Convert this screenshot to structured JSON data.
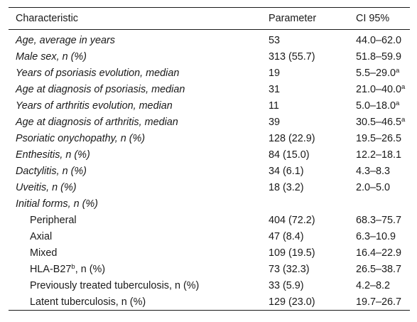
{
  "table": {
    "headers": [
      "Characteristic",
      "Parameter",
      "CI 95%"
    ],
    "rows": [
      {
        "characteristic": "Age, average in years",
        "sup": "",
        "suffix": "",
        "parameter": "53",
        "ci": "44.0–62.0",
        "ci_sup": "",
        "italic": true,
        "indent": false
      },
      {
        "characteristic": "Male sex, n (%)",
        "sup": "",
        "suffix": "",
        "parameter": "313 (55.7)",
        "ci": "51.8–59.9",
        "ci_sup": "",
        "italic": true,
        "indent": false
      },
      {
        "characteristic": "Years of psoriasis evolution, median",
        "sup": "",
        "suffix": "",
        "parameter": "19",
        "ci": "5.5–29.0",
        "ci_sup": "a",
        "italic": true,
        "indent": false
      },
      {
        "characteristic": "Age at diagnosis of psoriasis, median",
        "sup": "",
        "suffix": "",
        "parameter": "31",
        "ci": "21.0–40.0",
        "ci_sup": "a",
        "italic": true,
        "indent": false
      },
      {
        "characteristic": "Years of arthritis evolution, median",
        "sup": "",
        "suffix": "",
        "parameter": "11",
        "ci": "5.0–18.0",
        "ci_sup": "a",
        "italic": true,
        "indent": false
      },
      {
        "characteristic": "Age at diagnosis of arthritis, median",
        "sup": "",
        "suffix": "",
        "parameter": "39",
        "ci": "30.5–46.5",
        "ci_sup": "a",
        "italic": true,
        "indent": false
      },
      {
        "characteristic": "Psoriatic onychopathy, n (%)",
        "sup": "",
        "suffix": "",
        "parameter": "128 (22.9)",
        "ci": "19.5–26.5",
        "ci_sup": "",
        "italic": true,
        "indent": false
      },
      {
        "characteristic": "Enthesitis, n (%)",
        "sup": "",
        "suffix": "",
        "parameter": "84 (15.0)",
        "ci": "12.2–18.1",
        "ci_sup": "",
        "italic": true,
        "indent": false
      },
      {
        "characteristic": "Dactylitis, n (%)",
        "sup": "",
        "suffix": "",
        "parameter": "34 (6.1)",
        "ci": "4.3–8.3",
        "ci_sup": "",
        "italic": true,
        "indent": false
      },
      {
        "characteristic": "Uveitis, n (%)",
        "sup": "",
        "suffix": "",
        "parameter": "18 (3.2)",
        "ci": "2.0–5.0",
        "ci_sup": "",
        "italic": true,
        "indent": false
      },
      {
        "characteristic": "Initial forms, n (%)",
        "sup": "",
        "suffix": "",
        "parameter": "",
        "ci": "",
        "ci_sup": "",
        "italic": true,
        "indent": false
      },
      {
        "characteristic": "Peripheral",
        "sup": "",
        "suffix": "",
        "parameter": "404 (72.2)",
        "ci": "68.3–75.7",
        "ci_sup": "",
        "italic": false,
        "indent": true
      },
      {
        "characteristic": "Axial",
        "sup": "",
        "suffix": "",
        "parameter": "47 (8.4)",
        "ci": "6.3–10.9",
        "ci_sup": "",
        "italic": false,
        "indent": true
      },
      {
        "characteristic": "Mixed",
        "sup": "",
        "suffix": "",
        "parameter": "109 (19.5)",
        "ci": "16.4–22.9",
        "ci_sup": "",
        "italic": false,
        "indent": true
      },
      {
        "characteristic": "HLA-B27",
        "sup": "b",
        "suffix": ", n (%)",
        "parameter": "73 (32.3)",
        "ci": "26.5–38.7",
        "ci_sup": "",
        "italic": false,
        "indent": true
      },
      {
        "characteristic": "Previously treated tuberculosis, n (%)",
        "sup": "",
        "suffix": "",
        "parameter": "33 (5.9)",
        "ci": "4.2–8.2",
        "ci_sup": "",
        "italic": false,
        "indent": true
      },
      {
        "characteristic": "Latent tuberculosis, n (%)",
        "sup": "",
        "suffix": "",
        "parameter": "129 (23.0)",
        "ci": "19.7–26.7",
        "ci_sup": "",
        "italic": false,
        "indent": true
      }
    ]
  }
}
